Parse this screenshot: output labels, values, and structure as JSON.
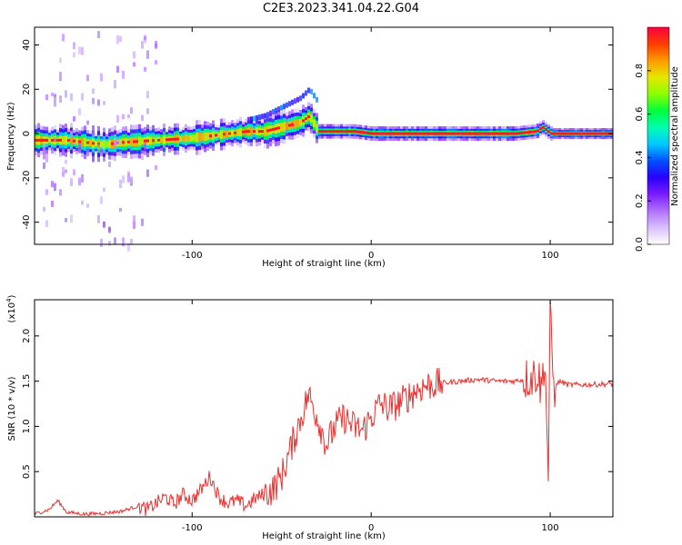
{
  "title": "C2E3.2023.341.04.22.G04",
  "colors": {
    "snr_line": "#e8312f",
    "colormap": [
      "#ffffff",
      "#d9c0ff",
      "#b070ff",
      "#7a1cff",
      "#2a00ff",
      "#0050ff",
      "#00c8ff",
      "#00ffb0",
      "#00ff3c",
      "#8cff00",
      "#e6e600",
      "#ff9a00",
      "#ff3c00",
      "#ff0040"
    ]
  },
  "chart_data": [
    {
      "type": "heatmap",
      "xlabel": "Height of straight line (km)",
      "ylabel": "Frequency (Hz)",
      "xlim": [
        -188,
        135
      ],
      "ylim": [
        -50,
        48
      ],
      "xticks": [
        -100,
        0,
        100
      ],
      "xtick_labels": [
        "-100",
        "0",
        "100"
      ],
      "yticks": [
        -40,
        -20,
        0,
        20,
        40
      ],
      "ytick_labels": [
        "-40",
        "-20",
        "0",
        "20",
        "40"
      ],
      "colorbar": {
        "label": "Normalized spectral amplitude",
        "range": [
          0,
          1
        ],
        "ticks": [
          "0.0",
          "0.2",
          "0.4",
          "0.6",
          "0.8"
        ]
      },
      "ridge": {
        "x": [
          -188,
          -170,
          -150,
          -140,
          -120,
          -100,
          -90,
          -80,
          -70,
          -60,
          -50,
          -40,
          -35,
          -30,
          -20,
          -10,
          0,
          10,
          20,
          40,
          60,
          80,
          92,
          95,
          100,
          120,
          135
        ],
        "y": [
          -3,
          -3,
          -5,
          -4,
          -3,
          -2,
          -1,
          0,
          1,
          1,
          3,
          5,
          8,
          1,
          1,
          1,
          0,
          0,
          0,
          0,
          0,
          0,
          1,
          3,
          0,
          0,
          0
        ]
      }
    },
    {
      "type": "line",
      "xlabel": "Height of straight line (km)",
      "ylabel": "SNR (10 * v/v)",
      "scale_label": "(x10",
      "scale_exponent": "4",
      "xlim": [
        -188,
        135
      ],
      "ylim": [
        0,
        2.4
      ],
      "xticks": [
        -100,
        0,
        100
      ],
      "xtick_labels": [
        "-100",
        "0",
        "100"
      ],
      "yticks": [
        0.5,
        1.0,
        1.5,
        2.0
      ],
      "ytick_labels": [
        "0.5",
        "1.0",
        "1.5",
        "2.0"
      ],
      "series": [
        {
          "x": [
            -188,
            -180,
            -175,
            -170,
            -160,
            -150,
            -140,
            -130,
            -125,
            -120,
            -115,
            -110,
            -105,
            -100,
            -95,
            -90,
            -85,
            -80,
            -75,
            -70,
            -65,
            -60,
            -55,
            -50,
            -45,
            -40,
            -35,
            -30,
            -25,
            -20,
            -15,
            -10,
            -5,
            0,
            5,
            10,
            15,
            20,
            25,
            30,
            40,
            50,
            60,
            70,
            80,
            85,
            90,
            93,
            95,
            97,
            98,
            99,
            100,
            102,
            105,
            110,
            120,
            135
          ],
          "y": [
            0.03,
            0.08,
            0.18,
            0.05,
            0.03,
            0.04,
            0.06,
            0.12,
            0.08,
            0.15,
            0.22,
            0.14,
            0.25,
            0.18,
            0.3,
            0.45,
            0.22,
            0.15,
            0.18,
            0.12,
            0.2,
            0.25,
            0.3,
            0.45,
            0.75,
            1.05,
            1.35,
            1.1,
            0.8,
            1.0,
            1.1,
            1.0,
            0.95,
            1.1,
            1.25,
            1.2,
            1.25,
            1.32,
            1.4,
            1.45,
            1.48,
            1.5,
            1.52,
            1.5,
            1.5,
            1.52,
            1.55,
            1.6,
            1.4,
            1.8,
            1.1,
            0.42,
            2.3,
            1.4,
            1.5,
            1.46,
            1.46,
            1.47
          ]
        }
      ]
    }
  ]
}
